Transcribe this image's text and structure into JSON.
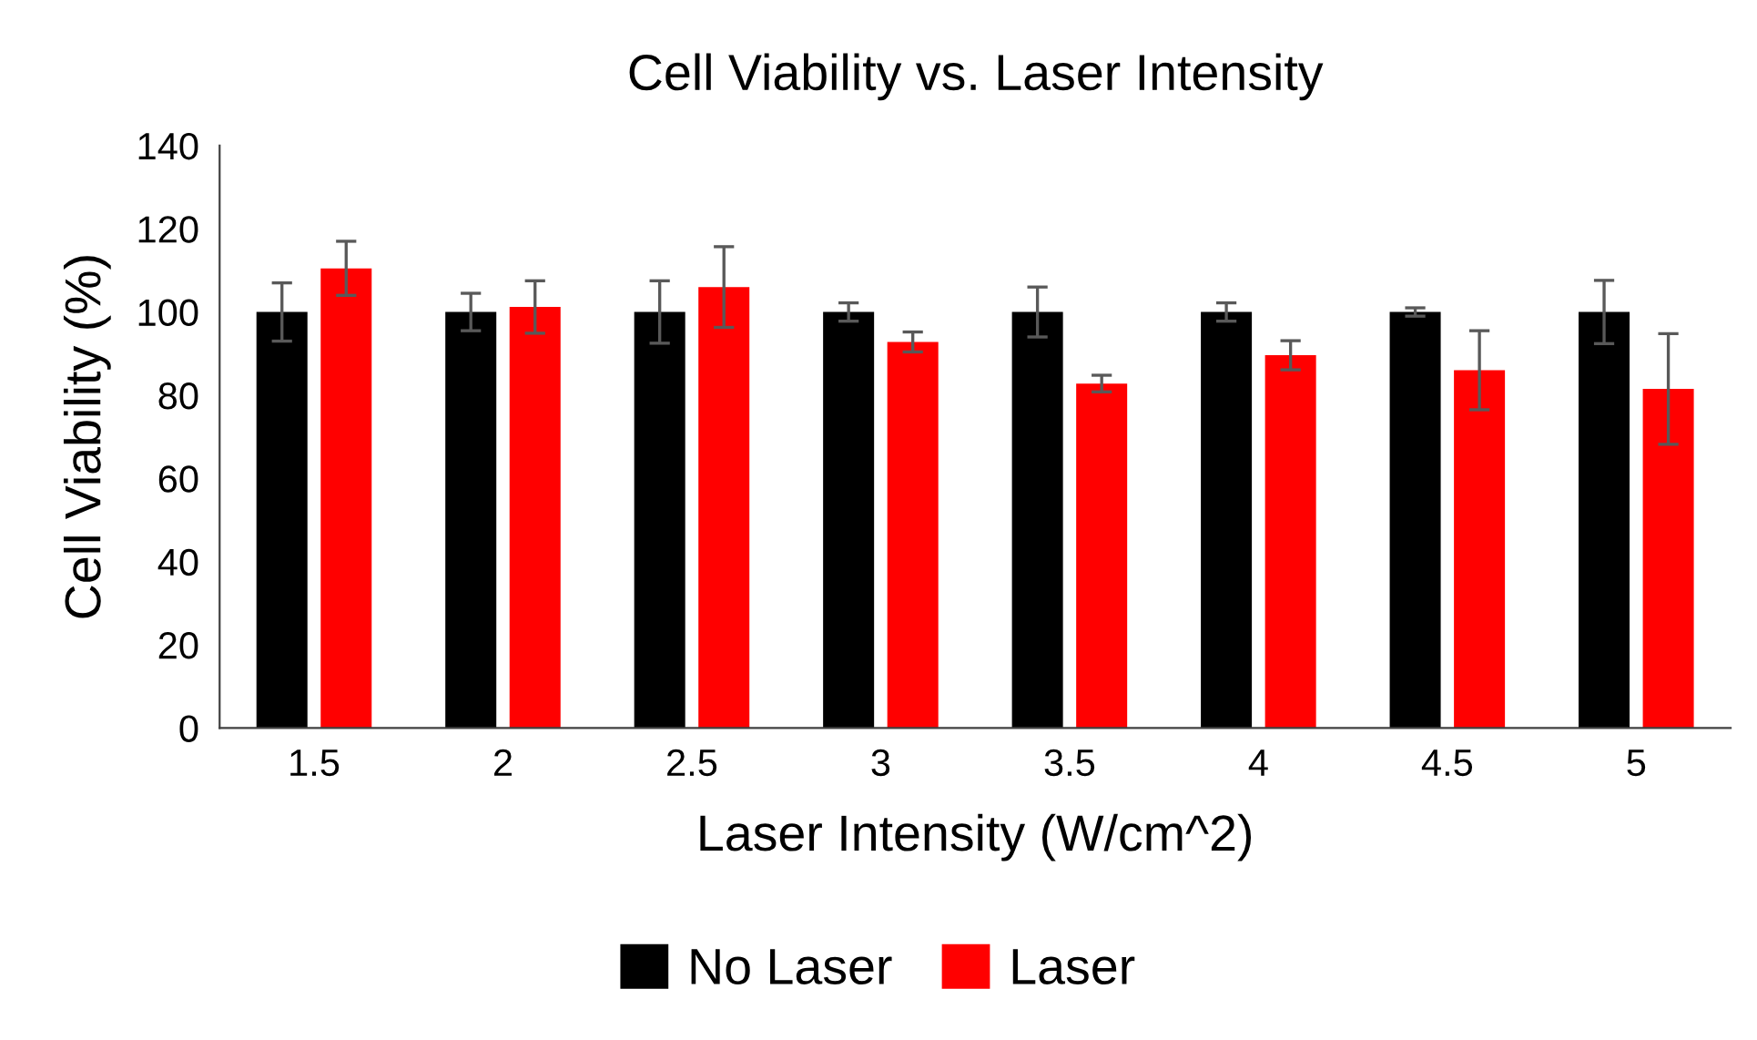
{
  "chart_data": {
    "type": "bar",
    "title": "Cell Viability vs. Laser Intensity",
    "xlabel": "Laser Intensity (W/cm^2)",
    "ylabel": "Cell Viability (%)",
    "categories": [
      "1.5",
      "2",
      "2.5",
      "3",
      "3.5",
      "4",
      "4.5",
      "5"
    ],
    "series": [
      {
        "name": "No Laser",
        "color": "#000000",
        "values": [
          100,
          100,
          100,
          100,
          100,
          100,
          100,
          100
        ],
        "errors": [
          7,
          4.5,
          7.5,
          2.2,
          6,
          2.2,
          1,
          7.6
        ]
      },
      {
        "name": "Laser",
        "color": "#ff0000",
        "values": [
          110.5,
          101.2,
          106,
          92.8,
          82.8,
          89.6,
          86,
          81.5
        ],
        "errors": [
          6.5,
          6.3,
          9.7,
          2.4,
          2,
          3.5,
          9.5,
          13.3
        ]
      }
    ],
    "ylim": [
      0,
      140
    ],
    "yticks": [
      0,
      20,
      40,
      60,
      80,
      100,
      120,
      140
    ],
    "grid": false,
    "legend": "bottom"
  }
}
